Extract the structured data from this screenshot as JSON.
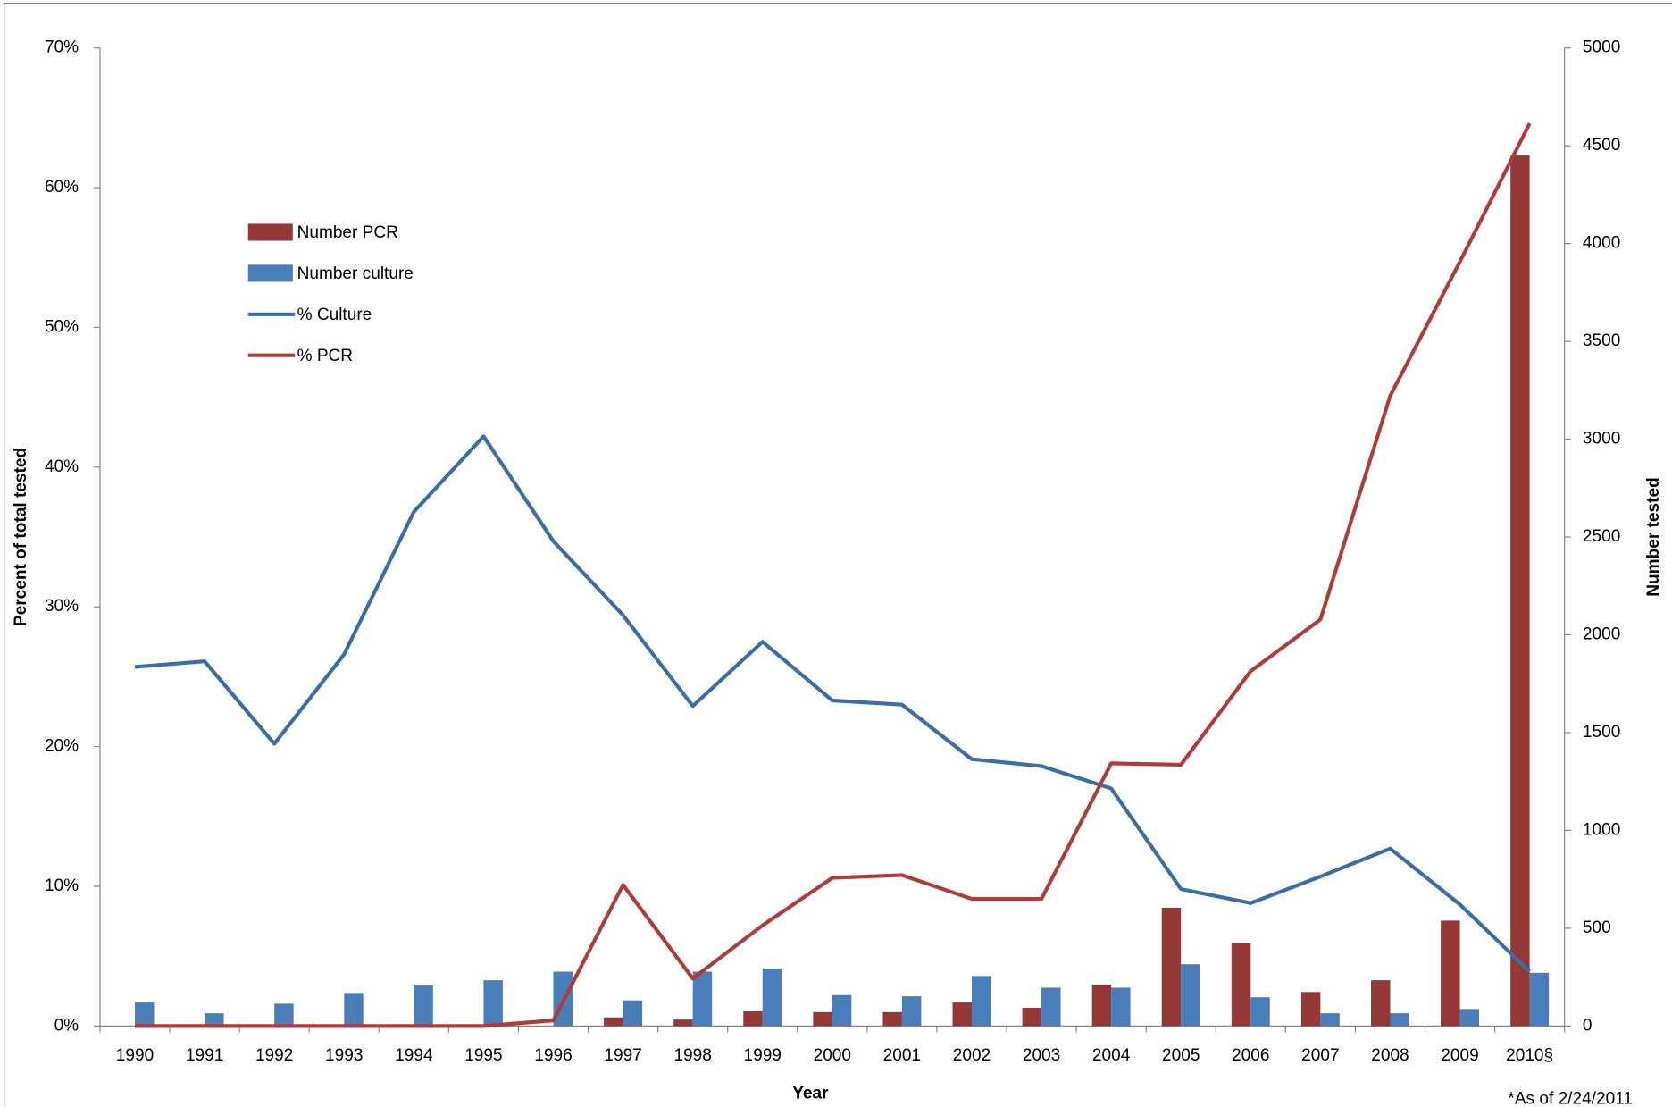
{
  "chart_data": {
    "type": "bar-line",
    "x_label": "Year",
    "y_label": "Percent of total tested",
    "y2_label": "Number tested",
    "annotation": "*As of 2/24/2011",
    "categories": [
      "1990",
      "1991",
      "1992",
      "1993",
      "1994",
      "1995",
      "1996",
      "1997",
      "1998",
      "1999",
      "2000",
      "2001",
      "2002",
      "2003",
      "2004",
      "2005",
      "2006",
      "2007",
      "2008",
      "2009",
      "2010§"
    ],
    "series": [
      {
        "name": "Number PCR",
        "type": "bar",
        "axis": "y2",
        "color": "#953735",
        "values": [
          0,
          0,
          0,
          0,
          0,
          0,
          0,
          44,
          33,
          76,
          71,
          71,
          120,
          93,
          212,
          605,
          425,
          174,
          234,
          539,
          4450
        ]
      },
      {
        "name": "Number culture",
        "type": "bar",
        "axis": "y2",
        "color": "#4a7ebb",
        "values": [
          120,
          65,
          114,
          169,
          207,
          234,
          278,
          131,
          278,
          294,
          158,
          152,
          256,
          196,
          196,
          316,
          147,
          65,
          65,
          87,
          272
        ]
      },
      {
        "name": "% Culture",
        "type": "line",
        "color": "#3a6ea8",
        "values": [
          25.7,
          26.1,
          20.2,
          26.6,
          36.8,
          42.2,
          34.7,
          29.4,
          22.9,
          27.5,
          23.3,
          23.0,
          19.1,
          18.6,
          17.0,
          9.8,
          8.8,
          10.7,
          12.7,
          8.7,
          3.9
        ]
      },
      {
        "name": "% PCR",
        "type": "line",
        "color": "#b03c3a",
        "values": [
          0,
          0,
          0,
          0,
          0,
          0,
          0.4,
          10.1,
          3.4,
          7.2,
          10.6,
          10.8,
          9.1,
          9.1,
          18.8,
          18.7,
          25.4,
          29.1,
          45.1,
          54.7,
          64.6
        ]
      }
    ],
    "ylim": [
      0,
      70
    ],
    "yticks": [
      {
        "value": 0,
        "label": "0%"
      },
      {
        "value": 10,
        "label": "10%"
      },
      {
        "value": 20,
        "label": "20%"
      },
      {
        "value": 30,
        "label": "30%"
      },
      {
        "value": 40,
        "label": "40%"
      },
      {
        "value": 50,
        "label": "50%"
      },
      {
        "value": 60,
        "label": "60%"
      },
      {
        "value": 70,
        "label": "70%"
      }
    ],
    "y2lim": [
      0,
      5000
    ],
    "y2ticks": [
      0,
      500,
      1000,
      1500,
      2000,
      2500,
      3000,
      3500,
      4000,
      4500,
      5000
    ],
    "grid": false,
    "legend": "upper left"
  }
}
